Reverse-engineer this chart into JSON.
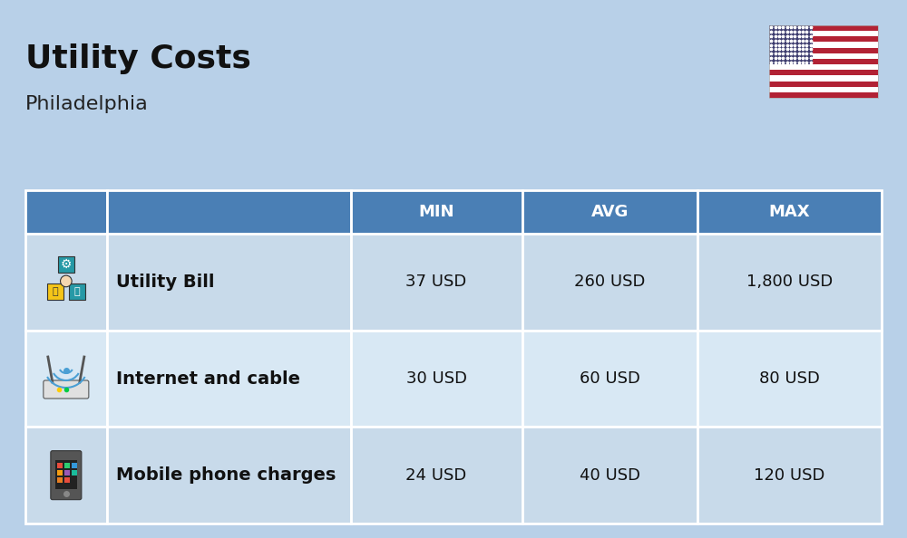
{
  "title": "Utility Costs",
  "subtitle": "Philadelphia",
  "background_color": "#b8d0e8",
  "header_bg_color": "#4a7fb5",
  "header_text_color": "#ffffff",
  "row_bg_color_odd": "#c8daea",
  "row_bg_color_even": "#d8e8f4",
  "table_border_color": "#ffffff",
  "columns": [
    "",
    "",
    "MIN",
    "AVG",
    "MAX"
  ],
  "rows": [
    {
      "label": "Utility Bill",
      "min": "37 USD",
      "avg": "260 USD",
      "max": "1,800 USD"
    },
    {
      "label": "Internet and cable",
      "min": "30 USD",
      "avg": "60 USD",
      "max": "80 USD"
    },
    {
      "label": "Mobile phone charges",
      "min": "24 USD",
      "avg": "40 USD",
      "max": "120 USD"
    }
  ],
  "title_fontsize": 26,
  "subtitle_fontsize": 16,
  "header_fontsize": 13,
  "cell_fontsize": 13,
  "label_fontsize": 14
}
